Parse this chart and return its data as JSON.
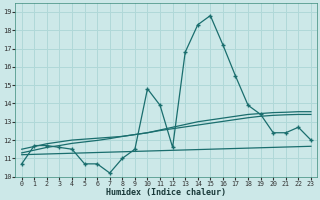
{
  "xlabel": "Humidex (Indice chaleur)",
  "bg_color": "#cce8e8",
  "grid_color": "#b0d8d8",
  "line_color": "#1a6e6e",
  "xlim": [
    -0.5,
    23.5
  ],
  "ylim": [
    10.0,
    19.5
  ],
  "xticks": [
    0,
    1,
    2,
    3,
    4,
    5,
    6,
    7,
    8,
    9,
    10,
    11,
    12,
    13,
    14,
    15,
    16,
    17,
    18,
    19,
    20,
    21,
    22,
    23
  ],
  "yticks": [
    10,
    11,
    12,
    13,
    14,
    15,
    16,
    17,
    18,
    19
  ],
  "main_y": [
    10.7,
    11.7,
    11.7,
    11.6,
    11.5,
    10.7,
    10.7,
    10.2,
    11.0,
    11.5,
    14.8,
    13.9,
    11.6,
    16.8,
    18.3,
    18.8,
    17.2,
    15.5,
    13.9,
    13.4,
    12.4,
    12.4,
    12.7,
    12.0
  ],
  "trend_top1": [
    11.5,
    11.65,
    11.8,
    11.9,
    12.0,
    12.05,
    12.1,
    12.15,
    12.2,
    12.3,
    12.4,
    12.55,
    12.7,
    12.85,
    13.0,
    13.1,
    13.2,
    13.3,
    13.4,
    13.45,
    13.5,
    13.52,
    13.55,
    13.55
  ],
  "trend_top2": [
    11.3,
    11.45,
    11.6,
    11.7,
    11.82,
    11.9,
    11.98,
    12.08,
    12.2,
    12.3,
    12.4,
    12.52,
    12.62,
    12.72,
    12.82,
    12.92,
    13.02,
    13.12,
    13.22,
    13.3,
    13.35,
    13.38,
    13.4,
    13.4
  ],
  "trend_flat": [
    11.2,
    11.22,
    11.24,
    11.26,
    11.28,
    11.3,
    11.32,
    11.34,
    11.36,
    11.38,
    11.4,
    11.42,
    11.44,
    11.46,
    11.48,
    11.5,
    11.52,
    11.54,
    11.56,
    11.58,
    11.6,
    11.62,
    11.64,
    11.66
  ]
}
